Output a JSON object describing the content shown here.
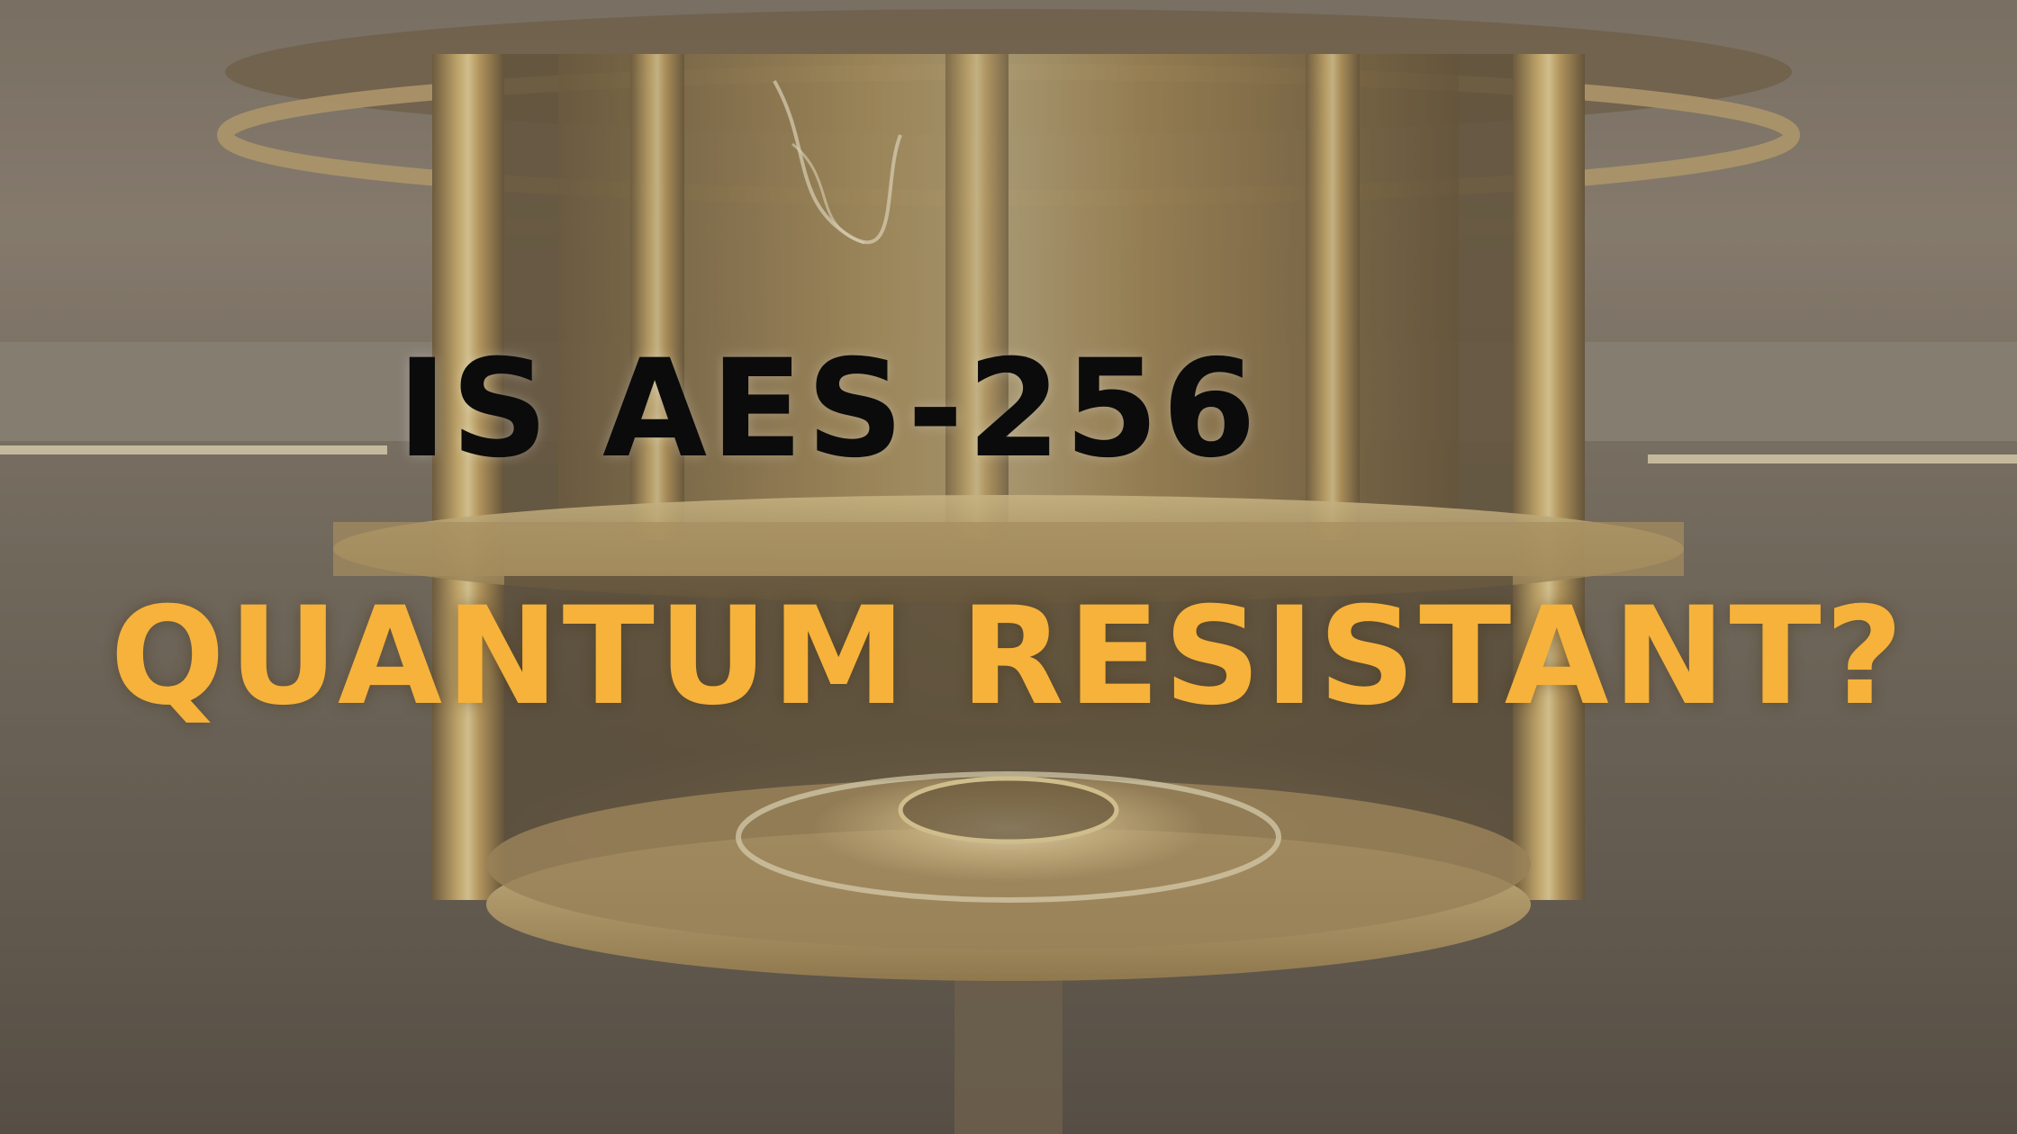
{
  "headline": {
    "line1": "IS AES-256",
    "line2": "QUANTUM RESISTANT?"
  },
  "colors": {
    "line1": "#0b0b0b",
    "line2": "#f6b23a",
    "background": "#6e6558",
    "gold": "#c9a45a"
  },
  "image": {
    "subject": "quantum-computer-cryostat-photo"
  }
}
